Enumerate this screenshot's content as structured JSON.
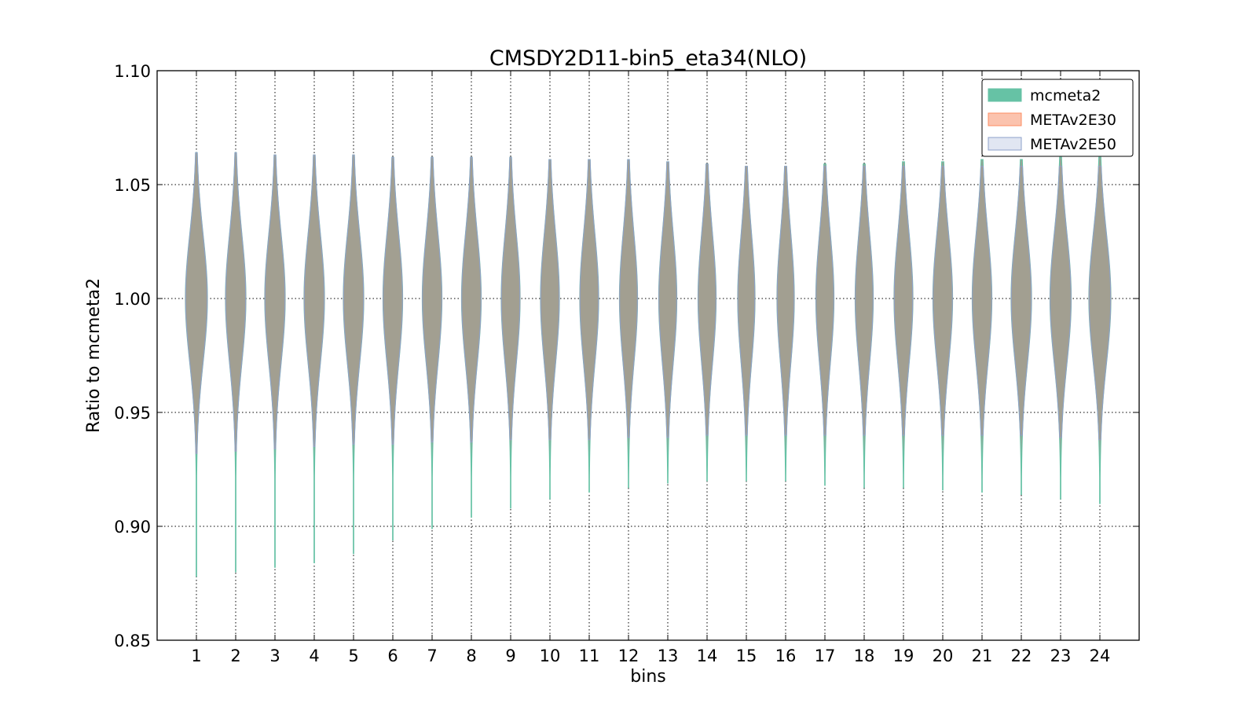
{
  "chart_data": {
    "type": "violin",
    "title": "CMSDY2D11-bin5_eta34(NLO)",
    "xlabel": "bins",
    "ylabel": "Ratio to mcmeta2",
    "ylim": [
      0.85,
      1.1
    ],
    "y_ticks": [
      "0.85",
      "0.90",
      "0.95",
      "1.00",
      "1.05",
      "1.10"
    ],
    "y_tick_values": [
      0.85,
      0.9,
      0.95,
      1.0,
      1.05,
      1.1
    ],
    "categories": [
      "1",
      "2",
      "3",
      "4",
      "5",
      "6",
      "7",
      "8",
      "9",
      "10",
      "11",
      "12",
      "13",
      "14",
      "15",
      "16",
      "17",
      "18",
      "19",
      "20",
      "21",
      "22",
      "23",
      "24"
    ],
    "grid": true,
    "legend_position": "top-right",
    "series": [
      {
        "name": "mcmeta2",
        "color": "#66c2a5",
        "y_min": [
          0.878,
          0.88,
          0.882,
          0.884,
          0.888,
          0.894,
          0.899,
          0.904,
          0.908,
          0.912,
          0.915,
          0.917,
          0.919,
          0.92,
          0.92,
          0.92,
          0.918,
          0.917,
          0.917,
          0.916,
          0.915,
          0.914,
          0.912,
          0.91
        ],
        "y_max": [
          1.064,
          1.064,
          1.063,
          1.063,
          1.063,
          1.062,
          1.062,
          1.062,
          1.062,
          1.061,
          1.061,
          1.061,
          1.06,
          1.059,
          1.058,
          1.058,
          1.059,
          1.059,
          1.06,
          1.06,
          1.061,
          1.061,
          1.062,
          1.062
        ]
      },
      {
        "name": "METAv2E30",
        "color": "#fc8d62",
        "y_min": [
          0.932,
          0.933,
          0.934,
          0.935,
          0.936,
          0.936,
          0.937,
          0.937,
          0.938,
          0.938,
          0.938,
          0.939,
          0.939,
          0.94,
          0.94,
          0.94,
          0.94,
          0.94,
          0.94,
          0.94,
          0.94,
          0.94,
          0.939,
          0.938
        ],
        "y_max": [
          1.064,
          1.064,
          1.063,
          1.063,
          1.063,
          1.062,
          1.062,
          1.062,
          1.062,
          1.061,
          1.061,
          1.061,
          1.06,
          1.059,
          1.058,
          1.058,
          1.058,
          1.058,
          1.058,
          1.058,
          1.058,
          1.058,
          1.058,
          1.058
        ]
      },
      {
        "name": "METAv2E50",
        "color": "#8da0cb",
        "y_min": [
          0.932,
          0.933,
          0.934,
          0.935,
          0.936,
          0.936,
          0.937,
          0.937,
          0.938,
          0.938,
          0.938,
          0.939,
          0.939,
          0.94,
          0.94,
          0.94,
          0.94,
          0.94,
          0.94,
          0.94,
          0.94,
          0.94,
          0.939,
          0.938
        ],
        "y_max": [
          1.064,
          1.064,
          1.063,
          1.063,
          1.063,
          1.062,
          1.062,
          1.062,
          1.062,
          1.061,
          1.061,
          1.061,
          1.06,
          1.059,
          1.058,
          1.058,
          1.058,
          1.058,
          1.058,
          1.058,
          1.058,
          1.058,
          1.058,
          1.058
        ]
      }
    ],
    "violin_fill_color": "#a39f92",
    "violin_fill_opacity": 1.0,
    "violin_body_ratio_range": [
      0.955,
      1.045
    ],
    "violin_peak_ratio": 1.0,
    "violin_half_widths_data_units": [
      0.28,
      0.26,
      0.26,
      0.26,
      0.26,
      0.25,
      0.25,
      0.25,
      0.24,
      0.24,
      0.24,
      0.23,
      0.23,
      0.23,
      0.22,
      0.22,
      0.23,
      0.23,
      0.24,
      0.25,
      0.25,
      0.26,
      0.27,
      0.28
    ]
  }
}
